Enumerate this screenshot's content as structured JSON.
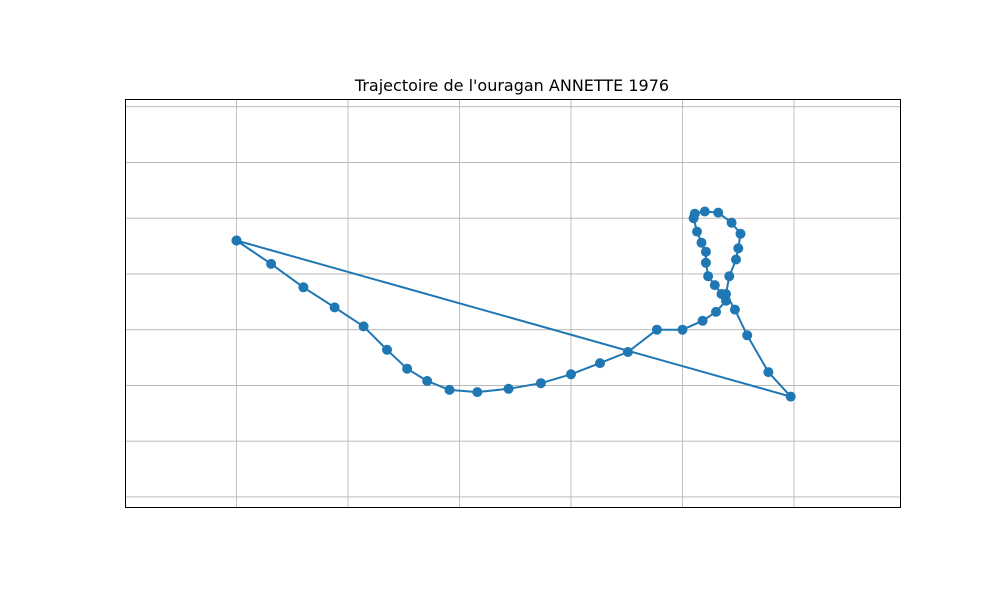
{
  "chart_data": {
    "type": "line",
    "title": "Trajectoire de l'ouragan ANNETTE 1976",
    "xlabel": "",
    "ylabel": "",
    "grid": true,
    "tick_labels_visible": false,
    "color": "#1f77b4",
    "series": [
      {
        "x": [
          0.0,
          0.31,
          0.6,
          0.88,
          1.14,
          1.35,
          1.53,
          1.71,
          1.91,
          2.16,
          2.44,
          2.73,
          3.0,
          3.26,
          3.51,
          3.77,
          4.0,
          4.18,
          4.3,
          4.39,
          4.35,
          4.29,
          4.23,
          4.21,
          4.21,
          4.17,
          4.13,
          4.1,
          4.11,
          4.2,
          4.32,
          4.44,
          4.52,
          4.5,
          4.48,
          4.42,
          4.39,
          4.47,
          4.58,
          4.77,
          4.97,
          0.0
        ],
        "y": [
          0.0,
          -0.21,
          -0.42,
          -0.6,
          -0.77,
          -0.98,
          -1.15,
          -1.26,
          -1.34,
          -1.36,
          -1.33,
          -1.28,
          -1.2,
          -1.1,
          -1.0,
          -0.8,
          -0.8,
          -0.72,
          -0.64,
          -0.54,
          -0.48,
          -0.4,
          -0.32,
          -0.2,
          -0.1,
          -0.02,
          0.08,
          0.2,
          0.24,
          0.26,
          0.25,
          0.16,
          0.06,
          -0.07,
          -0.17,
          -0.32,
          -0.48,
          -0.62,
          -0.85,
          -1.18,
          -1.4,
          0.0
        ]
      }
    ]
  }
}
